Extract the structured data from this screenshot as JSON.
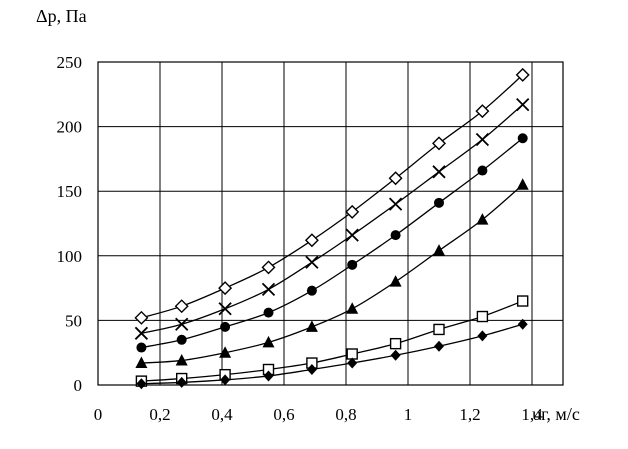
{
  "chart_data": {
    "type": "scatter",
    "ylabel": "Δp, Па",
    "xlabel": "υг, м/с",
    "xlim": [
      0,
      1.5
    ],
    "ylim": [
      0,
      250
    ],
    "xticks": [
      0,
      0.2,
      0.4,
      0.6,
      0.8,
      1.0,
      1.2,
      1.4
    ],
    "xtick_labels": [
      "0",
      "0,2",
      "0,4",
      "0,6",
      "0,8",
      "1",
      "1,2",
      "1,4"
    ],
    "yticks": [
      0,
      50,
      100,
      150,
      200,
      250
    ],
    "ytick_labels": [
      "0",
      "50",
      "100",
      "150",
      "200",
      "250"
    ],
    "grid": true,
    "x": [
      0.14,
      0.27,
      0.41,
      0.55,
      0.69,
      0.82,
      0.96,
      1.1,
      1.24,
      1.37
    ],
    "series": [
      {
        "marker": "open-diamond",
        "values": [
          52,
          61,
          75,
          91,
          112,
          134,
          160,
          187,
          212,
          240
        ]
      },
      {
        "marker": "cross",
        "values": [
          40,
          47,
          59,
          74,
          95,
          116,
          140,
          165,
          190,
          217
        ]
      },
      {
        "marker": "filled-circle",
        "values": [
          29,
          35,
          45,
          56,
          73,
          93,
          116,
          141,
          166,
          191
        ]
      },
      {
        "marker": "filled-triangle",
        "values": [
          17,
          19,
          25,
          33,
          45,
          59,
          80,
          104,
          128,
          155
        ]
      },
      {
        "marker": "open-square",
        "values": [
          3,
          5,
          8,
          12,
          17,
          24,
          32,
          43,
          53,
          65
        ]
      },
      {
        "marker": "filled-diamond",
        "values": [
          1,
          2,
          4,
          7,
          12,
          17,
          23,
          30,
          38,
          47
        ]
      }
    ]
  }
}
